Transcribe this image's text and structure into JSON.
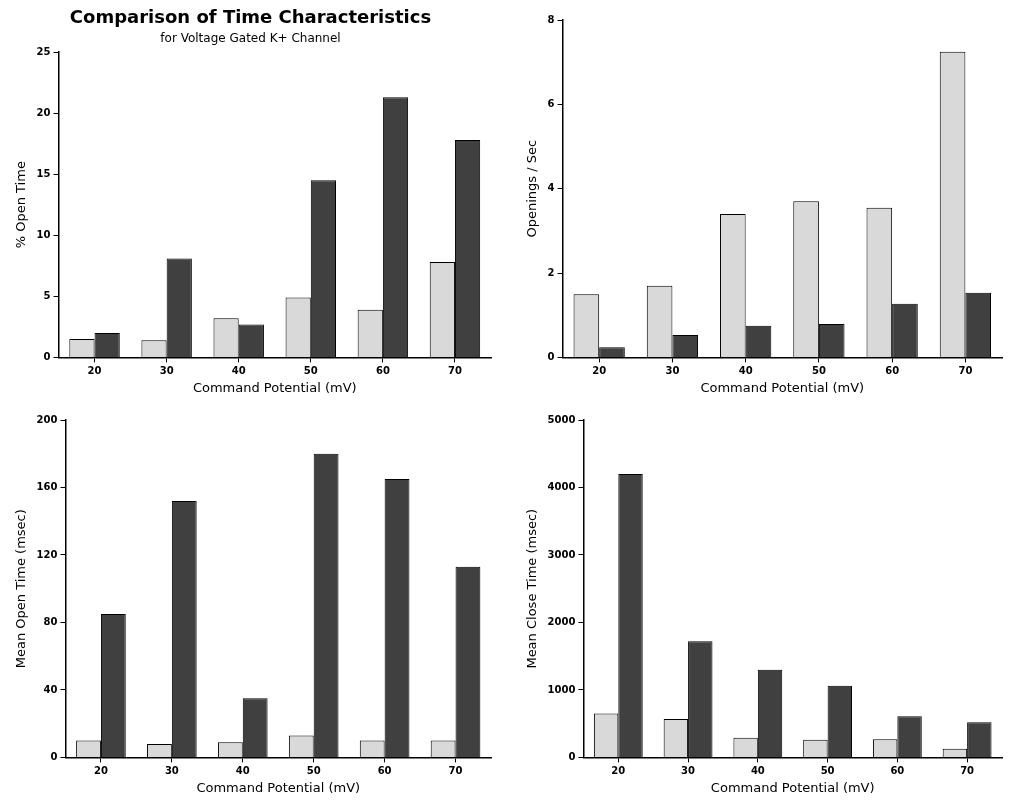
{
  "chart_data": [
    {
      "type": "bar",
      "title": "Comparison of Time Characteristics",
      "subtitle": "for Voltage Gated K+ Channel",
      "xlabel": "Command Potential (mV)",
      "ylabel": "% Open Time",
      "categories": [
        "20",
        "30",
        "40",
        "50",
        "60",
        "70"
      ],
      "series": [
        {
          "color": "#d9d9d9",
          "values": [
            1.5,
            1.4,
            3.2,
            4.9,
            3.9,
            7.8
          ]
        },
        {
          "color": "#404040",
          "values": [
            2.0,
            8.1,
            2.7,
            14.5,
            21.3,
            17.8
          ]
        }
      ],
      "ylim": [
        0,
        25
      ],
      "yticks": [
        0,
        5,
        10,
        15,
        20,
        25
      ],
      "grid": false,
      "legend": false
    },
    {
      "type": "bar",
      "xlabel": "Command Potential (mV)",
      "ylabel": "Openings / Sec",
      "categories": [
        "20",
        "30",
        "40",
        "50",
        "60",
        "70"
      ],
      "series": [
        {
          "color": "#d9d9d9",
          "values": [
            1.5,
            1.7,
            3.4,
            3.7,
            3.55,
            7.25
          ]
        },
        {
          "color": "#404040",
          "values": [
            0.24,
            0.53,
            0.75,
            0.79,
            1.27,
            1.53
          ]
        }
      ],
      "ylim": [
        0,
        8
      ],
      "yticks": [
        0,
        2,
        4,
        6,
        8
      ],
      "grid": false,
      "legend": false
    },
    {
      "type": "bar",
      "xlabel": "Command Potential (mV)",
      "ylabel": "Mean Open Time (msec)",
      "categories": [
        "20",
        "30",
        "40",
        "50",
        "60",
        "70"
      ],
      "series": [
        {
          "color": "#d9d9d9",
          "values": [
            10,
            8,
            9,
            13,
            10,
            10
          ]
        },
        {
          "color": "#404040",
          "values": [
            85,
            152,
            35,
            180,
            165,
            113
          ]
        }
      ],
      "ylim": [
        0,
        200
      ],
      "yticks": [
        0,
        40,
        80,
        120,
        160,
        200
      ],
      "grid": false,
      "legend": false
    },
    {
      "type": "bar",
      "xlabel": "Command Potential (mV)",
      "ylabel": "Mean Close Time (msec)",
      "categories": [
        "20",
        "30",
        "40",
        "50",
        "60",
        "70"
      ],
      "series": [
        {
          "color": "#d9d9d9",
          "values": [
            650,
            570,
            290,
            260,
            270,
            130
          ]
        },
        {
          "color": "#404040",
          "values": [
            4200,
            1720,
            1300,
            1060,
            610,
            520
          ]
        }
      ],
      "ylim": [
        0,
        5000
      ],
      "yticks": [
        0,
        1000,
        2000,
        3000,
        4000,
        5000
      ],
      "grid": false,
      "legend": false
    }
  ]
}
